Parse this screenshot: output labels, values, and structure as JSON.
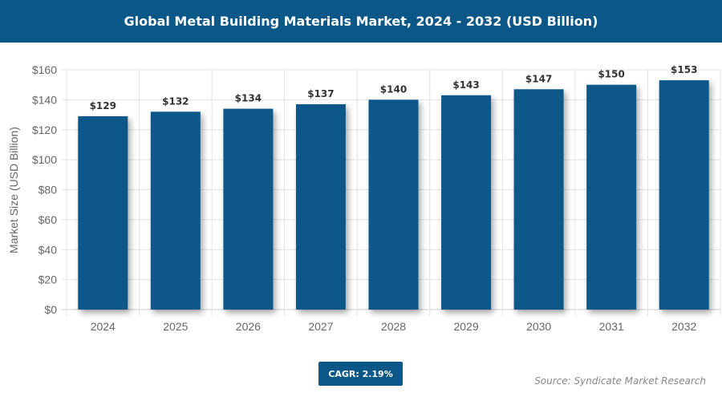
{
  "header": {
    "title": "Global Metal Building Materials Market, 2024 - 2032 (USD Billion)"
  },
  "chart_data": {
    "type": "bar",
    "title": "Global Metal Building Materials Market, 2024 - 2032 (USD Billion)",
    "xlabel": "",
    "ylabel": "Market Size (USD Billion)",
    "categories": [
      "2024",
      "2025",
      "2026",
      "2027",
      "2028",
      "2029",
      "2030",
      "2031",
      "2032"
    ],
    "values": [
      129,
      132,
      134,
      137,
      140,
      143,
      147,
      150,
      153
    ],
    "data_labels": [
      "$129",
      "$132",
      "$134",
      "$137",
      "$140",
      "$143",
      "$147",
      "$150",
      "$153"
    ],
    "ylim": [
      0,
      160
    ],
    "yticks": [
      0,
      20,
      40,
      60,
      80,
      100,
      120,
      140,
      160
    ],
    "ytick_labels": [
      "$0",
      "$20",
      "$40",
      "$60",
      "$80",
      "$100",
      "$120",
      "$140",
      "$160"
    ],
    "grid": true,
    "bar_color": "#0b5888"
  },
  "footer": {
    "cagr": "CAGR: 2.19%",
    "source": "Source: Syndicate Market Research"
  }
}
